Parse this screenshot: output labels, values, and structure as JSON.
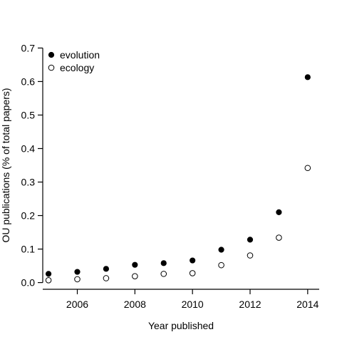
{
  "chart_data": {
    "type": "scatter",
    "xlabel": "Year published",
    "ylabel": "OU publications (% of total papers)",
    "xlim": [
      2004.8,
      2014.4
    ],
    "ylim": [
      -0.02,
      0.72
    ],
    "x_ticks": [
      2006,
      2008,
      2010,
      2012,
      2014
    ],
    "y_ticks": [
      0.0,
      0.1,
      0.2,
      0.3,
      0.4,
      0.5,
      0.6,
      0.7
    ],
    "x_tick_labels": [
      "2006",
      "2008",
      "2010",
      "2012",
      "2014"
    ],
    "y_tick_labels": [
      "0.0",
      "0.1",
      "0.2",
      "0.3",
      "0.4",
      "0.5",
      "0.6",
      "0.7"
    ],
    "grid": false,
    "legend_position": "top-left",
    "x": [
      2005,
      2006,
      2007,
      2008,
      2009,
      2010,
      2011,
      2012,
      2013,
      2014
    ],
    "series": [
      {
        "name": "evolution",
        "marker": "filled-circle",
        "color": "#000000",
        "values": [
          0.026,
          0.032,
          0.041,
          0.053,
          0.058,
          0.066,
          0.098,
          0.128,
          0.21,
          0.613
        ]
      },
      {
        "name": "ecology",
        "marker": "open-circle",
        "color": "#000000",
        "values": [
          0.007,
          0.01,
          0.013,
          0.019,
          0.026,
          0.028,
          0.052,
          0.081,
          0.134,
          0.342
        ]
      }
    ]
  }
}
